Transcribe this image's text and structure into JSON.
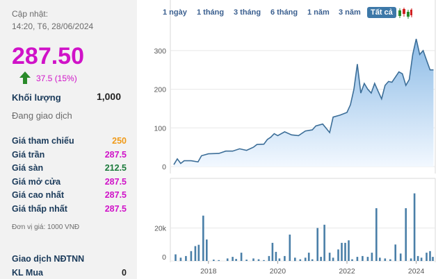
{
  "info": {
    "updated_label": "Cập nhật:",
    "updated_time": "14:20, T6, 28/06/2024",
    "price": "287.50",
    "change": "37.5 (15%)",
    "volume_label": "Khối lượng",
    "volume_value": "1,000",
    "status": "Đang giao dịch"
  },
  "prices": [
    {
      "label": "Giá tham chiếu",
      "value": "250",
      "color": "#f09a18"
    },
    {
      "label": "Giá trần",
      "value": "287.5",
      "color": "#d012c8"
    },
    {
      "label": "Giá sàn",
      "value": "212.5",
      "color": "#1a7a3a"
    },
    {
      "label": "Giá mở cửa",
      "value": "287.5",
      "color": "#d012c8"
    },
    {
      "label": "Giá cao nhất",
      "value": "287.5",
      "color": "#d012c8"
    },
    {
      "label": "Giá thấp nhất",
      "value": "287.5",
      "color": "#d012c8"
    }
  ],
  "unit_note": "Đơn vị giá: 1000 VNĐ",
  "foreign": {
    "title": "Giao dịch NĐTNN",
    "buy_label": "KL Mua",
    "buy_value": "0"
  },
  "tabs": [
    "1 ngày",
    "1 tháng",
    "3 tháng",
    "6 tháng",
    "1 năm",
    "3 năm",
    "Tất cả"
  ],
  "active_tab": 6,
  "chart_data": {
    "type": "area",
    "price_chart": {
      "y_ticks": [
        "0",
        "100",
        "200",
        "300"
      ],
      "ylim": [
        0,
        350
      ],
      "points": [
        [
          2017.0,
          5
        ],
        [
          2017.1,
          20
        ],
        [
          2017.2,
          8
        ],
        [
          2017.3,
          15
        ],
        [
          2017.5,
          15
        ],
        [
          2017.7,
          12
        ],
        [
          2017.8,
          28
        ],
        [
          2018.0,
          33
        ],
        [
          2018.3,
          34
        ],
        [
          2018.5,
          40
        ],
        [
          2018.7,
          40
        ],
        [
          2018.9,
          46
        ],
        [
          2019.1,
          42
        ],
        [
          2019.3,
          50
        ],
        [
          2019.4,
          57
        ],
        [
          2019.6,
          58
        ],
        [
          2019.7,
          70
        ],
        [
          2019.8,
          76
        ],
        [
          2019.9,
          85
        ],
        [
          2020.0,
          80
        ],
        [
          2020.2,
          90
        ],
        [
          2020.4,
          82
        ],
        [
          2020.6,
          80
        ],
        [
          2020.8,
          92
        ],
        [
          2021.0,
          95
        ],
        [
          2021.1,
          105
        ],
        [
          2021.3,
          110
        ],
        [
          2021.5,
          88
        ],
        [
          2021.6,
          128
        ],
        [
          2021.8,
          133
        ],
        [
          2022.0,
          140
        ],
        [
          2022.1,
          160
        ],
        [
          2022.2,
          200
        ],
        [
          2022.3,
          265
        ],
        [
          2022.4,
          190
        ],
        [
          2022.5,
          215
        ],
        [
          2022.6,
          200
        ],
        [
          2022.7,
          190
        ],
        [
          2022.8,
          215
        ],
        [
          2022.9,
          195
        ],
        [
          2023.0,
          175
        ],
        [
          2023.1,
          210
        ],
        [
          2023.2,
          220
        ],
        [
          2023.3,
          218
        ],
        [
          2023.5,
          245
        ],
        [
          2023.6,
          240
        ],
        [
          2023.7,
          210
        ],
        [
          2023.8,
          225
        ],
        [
          2023.9,
          290
        ],
        [
          2024.0,
          330
        ],
        [
          2024.1,
          290
        ],
        [
          2024.2,
          300
        ],
        [
          2024.3,
          275
        ],
        [
          2024.4,
          250
        ],
        [
          2024.5,
          250
        ]
      ]
    },
    "volume_chart": {
      "y_ticks": [
        "0",
        "20k"
      ],
      "ylim": [
        0,
        48000
      ],
      "bars": [
        [
          2017.05,
          4000
        ],
        [
          2017.2,
          2000
        ],
        [
          2017.35,
          3000
        ],
        [
          2017.5,
          6000
        ],
        [
          2017.62,
          9000
        ],
        [
          2017.72,
          9800
        ],
        [
          2017.85,
          27500
        ],
        [
          2017.95,
          13000
        ],
        [
          2018.15,
          800
        ],
        [
          2018.3,
          500
        ],
        [
          2018.55,
          1500
        ],
        [
          2018.7,
          2500
        ],
        [
          2018.8,
          1200
        ],
        [
          2018.95,
          5000
        ],
        [
          2019.1,
          800
        ],
        [
          2019.3,
          1500
        ],
        [
          2019.45,
          1000
        ],
        [
          2019.6,
          500
        ],
        [
          2019.75,
          3000
        ],
        [
          2019.85,
          11000
        ],
        [
          2019.95,
          5500
        ],
        [
          2020.05,
          1500
        ],
        [
          2020.2,
          3000
        ],
        [
          2020.35,
          16000
        ],
        [
          2020.5,
          2000
        ],
        [
          2020.65,
          1000
        ],
        [
          2020.8,
          2000
        ],
        [
          2020.9,
          5000
        ],
        [
          2021.0,
          1000
        ],
        [
          2021.15,
          20000
        ],
        [
          2021.25,
          2500
        ],
        [
          2021.35,
          22000
        ],
        [
          2021.5,
          5000
        ],
        [
          2021.6,
          2000
        ],
        [
          2021.75,
          7000
        ],
        [
          2021.85,
          11000
        ],
        [
          2021.95,
          11000
        ],
        [
          2022.05,
          12500
        ],
        [
          2022.15,
          1000
        ],
        [
          2022.3,
          2500
        ],
        [
          2022.45,
          3000
        ],
        [
          2022.6,
          2500
        ],
        [
          2022.72,
          5000
        ],
        [
          2022.85,
          32000
        ],
        [
          2022.95,
          2000
        ],
        [
          2023.1,
          1500
        ],
        [
          2023.25,
          1000
        ],
        [
          2023.4,
          10000
        ],
        [
          2023.55,
          4500
        ],
        [
          2023.7,
          32000
        ],
        [
          2023.85,
          1500
        ],
        [
          2023.95,
          41000
        ],
        [
          2024.05,
          3000
        ],
        [
          2024.15,
          2000
        ],
        [
          2024.3,
          5000
        ],
        [
          2024.4,
          6000
        ],
        [
          2024.48,
          2500
        ]
      ]
    },
    "x_ticks": [
      2018,
      2020,
      2022,
      2024
    ],
    "xlim": [
      2016.9,
      2024.55
    ]
  }
}
